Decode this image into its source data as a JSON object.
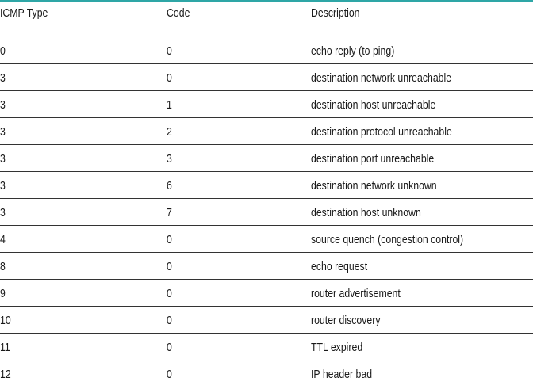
{
  "table": {
    "headers": {
      "type": "ICMP Type",
      "code": "Code",
      "description": "Description"
    },
    "rows": [
      {
        "type": "0",
        "code": "0",
        "description": "echo reply (to ping)"
      },
      {
        "type": "3",
        "code": "0",
        "description": "destination network unreachable"
      },
      {
        "type": "3",
        "code": "1",
        "description": "destination host unreachable"
      },
      {
        "type": "3",
        "code": "2",
        "description": "destination protocol unreachable"
      },
      {
        "type": "3",
        "code": "3",
        "description": "destination port unreachable"
      },
      {
        "type": "3",
        "code": "6",
        "description": "destination network unknown"
      },
      {
        "type": "3",
        "code": "7",
        "description": "destination host unknown"
      },
      {
        "type": "4",
        "code": "0",
        "description": "source quench (congestion control)"
      },
      {
        "type": "8",
        "code": "0",
        "description": "echo request"
      },
      {
        "type": "9",
        "code": "0",
        "description": "router advertisement"
      },
      {
        "type": "10",
        "code": "0",
        "description": "router discovery"
      },
      {
        "type": "11",
        "code": "0",
        "description": "TTL expired"
      },
      {
        "type": "12",
        "code": "0",
        "description": "IP header bad"
      }
    ]
  },
  "colors": {
    "top_rule": "#2ea6a6",
    "row_rule": "#333333",
    "text": "#1a1a1a"
  }
}
